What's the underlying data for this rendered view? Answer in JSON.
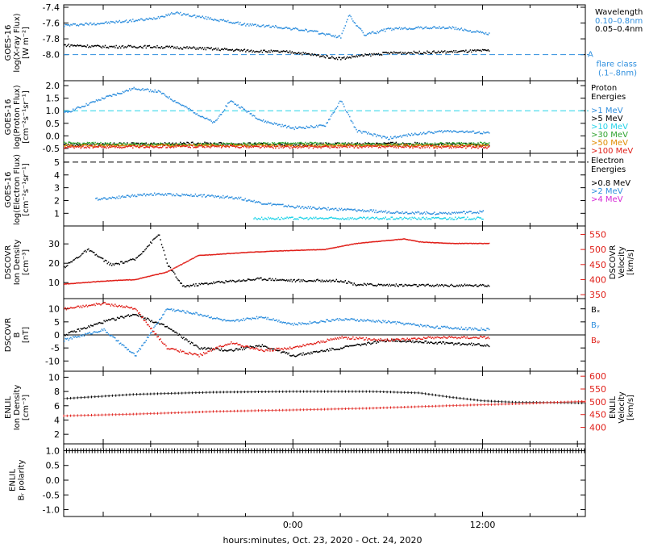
{
  "figure": {
    "xlabel": "hours:minutes, Oct. 23, 2020 - Oct. 24, 2020",
    "x_ticks": [
      {
        "t": 0,
        "label": "0:00"
      },
      {
        "t": 12,
        "label": "12:00"
      }
    ],
    "x_range_hours": [
      -14.5,
      18.5
    ],
    "data_end_hour": 12.4
  },
  "chart_data": [
    {
      "type": "scatter",
      "panel": "xray",
      "ylabel_lines": [
        "GOES-16",
        "log(X-ray Flux)",
        "[W m⁻²]"
      ],
      "ylim": [
        -8.3,
        -7.4
      ],
      "yticks": [
        -7.4,
        -7.6,
        -7.8,
        -8.0
      ],
      "legend_title": "Wavelength",
      "legend": [
        {
          "label": "0.10–0.8nm",
          "color": "#2f8fde"
        },
        {
          "label": "0.05–0.4nm",
          "color": "#000000"
        }
      ],
      "reference_line": {
        "value": -8.0,
        "color": "#2f8fde",
        "tag": "A",
        "label_lines": [
          "flare class",
          "(.1–.8nm)"
        ]
      },
      "series": [
        {
          "color": "#2f8fde",
          "points": [
            [
              -14.5,
              -7.63
            ],
            [
              -12,
              -7.6
            ],
            [
              -9,
              -7.55
            ],
            [
              -7.5,
              -7.47
            ],
            [
              -6,
              -7.52
            ],
            [
              -3,
              -7.62
            ],
            [
              -1,
              -7.65
            ],
            [
              1,
              -7.7
            ],
            [
              3,
              -7.78
            ],
            [
              3.5,
              -7.5
            ],
            [
              4.5,
              -7.75
            ],
            [
              6,
              -7.68
            ],
            [
              8,
              -7.66
            ],
            [
              10,
              -7.66
            ],
            [
              12.4,
              -7.74
            ]
          ]
        },
        {
          "color": "#000000",
          "points": [
            [
              -14.5,
              -7.88
            ],
            [
              -12,
              -7.9
            ],
            [
              -9,
              -7.9
            ],
            [
              -6,
              -7.92
            ],
            [
              -3,
              -7.95
            ],
            [
              0,
              -7.97
            ],
            [
              3,
              -8.05
            ],
            [
              4,
              -8.02
            ],
            [
              6,
              -7.98
            ],
            [
              9,
              -7.97
            ],
            [
              12.4,
              -7.95
            ]
          ]
        }
      ]
    },
    {
      "type": "scatter",
      "panel": "proton",
      "ylabel_lines": [
        "GOES-16",
        "log(Proton Flux)",
        "[cm⁻²s⁻¹sr⁻¹]"
      ],
      "ylim": [
        -0.6,
        2.1
      ],
      "yticks": [
        2.0,
        1.5,
        1.0,
        0.5,
        0.0,
        -0.5
      ],
      "legend_title_lines": [
        "Proton",
        "Energies"
      ],
      "legend": [
        {
          "label": ">1 MeV",
          "color": "#2f8fde"
        },
        {
          "label": ">5 MeV",
          "color": "#000000"
        },
        {
          "label": ">10 MeV",
          "color": "#22d3e8"
        },
        {
          "label": ">30 MeV",
          "color": "#2fa32f"
        },
        {
          "label": ">50 MeV",
          "color": "#e08c00"
        },
        {
          "label": ">100 MeV",
          "color": "#e0201a"
        }
      ],
      "reference_line": {
        "value": 1.0,
        "color": "#22d3e8"
      },
      "series": [
        {
          "color": "#2f8fde",
          "points": [
            [
              -14.5,
              0.9
            ],
            [
              -12,
              1.5
            ],
            [
              -10,
              1.9
            ],
            [
              -8.5,
              1.75
            ],
            [
              -7,
              1.2
            ],
            [
              -5,
              0.5
            ],
            [
              -4,
              1.4
            ],
            [
              -2,
              0.6
            ],
            [
              0,
              0.3
            ],
            [
              2,
              0.4
            ],
            [
              3,
              1.4
            ],
            [
              4,
              0.2
            ],
            [
              6,
              -0.1
            ],
            [
              8,
              0.1
            ],
            [
              10,
              0.2
            ],
            [
              12.4,
              0.1
            ]
          ]
        },
        {
          "color": "#000000",
          "points": [
            [
              -14.5,
              -0.35
            ],
            [
              -6,
              -0.3
            ],
            [
              0,
              -0.35
            ],
            [
              6,
              -0.3
            ],
            [
              12.4,
              -0.35
            ]
          ]
        },
        {
          "color": "#2fa32f",
          "points": [
            [
              -14.5,
              -0.3
            ],
            [
              -6,
              -0.35
            ],
            [
              0,
              -0.3
            ],
            [
              6,
              -0.35
            ],
            [
              12.4,
              -0.3
            ]
          ]
        },
        {
          "color": "#e08c00",
          "points": [
            [
              -14.5,
              -0.4
            ],
            [
              -6,
              -0.38
            ],
            [
              0,
              -0.4
            ],
            [
              6,
              -0.38
            ],
            [
              12.4,
              -0.4
            ]
          ]
        },
        {
          "color": "#e0201a",
          "points": [
            [
              -14.5,
              -0.45
            ],
            [
              -6,
              -0.42
            ],
            [
              0,
              -0.45
            ],
            [
              6,
              -0.43
            ],
            [
              12.4,
              -0.45
            ]
          ]
        }
      ]
    },
    {
      "type": "scatter",
      "panel": "electron",
      "ylabel_lines": [
        "GOES-16",
        "log(Electron Flux)",
        "[cm⁻²s⁻¹sr⁻¹]"
      ],
      "ylim": [
        0.2,
        5.5
      ],
      "yticks": [
        5,
        4,
        3,
        2,
        1
      ],
      "legend_title_lines": [
        "Electron",
        "Energies"
      ],
      "legend": [
        {
          "label": ">0.8 MeV",
          "color": "#000000"
        },
        {
          "label": ">2 MeV",
          "color": "#2f8fde"
        },
        {
          "label": ">4 MeV",
          "color": "#d62ad6"
        }
      ],
      "reference_line": {
        "value": 5.0,
        "color": "#000000"
      },
      "series": [
        {
          "color": "#2f8fde",
          "points": [
            [
              -12.5,
              2.1
            ],
            [
              -9,
              2.5
            ],
            [
              -6,
              2.4
            ],
            [
              -3.5,
              2.2
            ],
            [
              -2,
              1.8
            ],
            [
              0,
              1.5
            ],
            [
              3,
              1.3
            ],
            [
              6,
              1.1
            ],
            [
              9,
              1.0
            ],
            [
              12,
              1.1
            ]
          ]
        },
        {
          "color": "#22d3e8",
          "points": [
            [
              -2.5,
              0.6
            ],
            [
              0,
              0.6
            ],
            [
              4,
              0.6
            ],
            [
              8,
              0.6
            ],
            [
              12,
              0.6
            ]
          ]
        }
      ]
    },
    {
      "type": "scatter",
      "panel": "dscovr-density",
      "ylabel_lines": [
        "DSCOVR",
        "Ion Density",
        "[cm⁻³]"
      ],
      "ylim": [
        3,
        38
      ],
      "yticks": [
        30,
        20,
        10
      ],
      "right_axis": {
        "ylabel_lines": [
          "DSCOVR",
          "Velocity",
          "[km/s]"
        ],
        "color": "#e0201a",
        "ylim": [
          345,
          570
        ],
        "yticks": [
          550,
          500,
          450,
          400,
          350
        ]
      },
      "series": [
        {
          "color": "#000000",
          "axis": "left",
          "points": [
            [
              -14.5,
              18
            ],
            [
              -13,
              27
            ],
            [
              -11.5,
              19
            ],
            [
              -10,
              22
            ],
            [
              -8.5,
              35
            ],
            [
              -8,
              20
            ],
            [
              -7,
              8
            ],
            [
              -5,
              10
            ],
            [
              -2,
              12
            ],
            [
              0,
              11
            ],
            [
              3,
              11
            ],
            [
              4,
              9
            ],
            [
              8,
              8.5
            ],
            [
              12.4,
              8.5
            ]
          ]
        },
        {
          "color": "#e0201a",
          "axis": "right",
          "points": [
            [
              -14.5,
              385
            ],
            [
              -12,
              395
            ],
            [
              -10,
              400
            ],
            [
              -8,
              425
            ],
            [
              -6,
              480
            ],
            [
              -3,
              490
            ],
            [
              -1,
              495
            ],
            [
              2,
              500
            ],
            [
              4,
              520
            ],
            [
              7,
              535
            ],
            [
              8,
              525
            ],
            [
              10,
              520
            ],
            [
              12.4,
              520
            ]
          ]
        }
      ]
    },
    {
      "type": "scatter",
      "panel": "dscovr-b",
      "ylabel_lines": [
        "DSCOVR",
        "B",
        "[nT]"
      ],
      "ylim": [
        -13,
        13
      ],
      "yticks": [
        10,
        5,
        0,
        -5,
        -10
      ],
      "zero_line": true,
      "legend": [
        {
          "label": "Bₓ",
          "color": "#000000"
        },
        {
          "label": "Bᵧ",
          "color": "#2f8fde"
        },
        {
          "label": "Bᵩ",
          "color": "#e0201a"
        }
      ],
      "series": [
        {
          "color": "#000000",
          "points": [
            [
              -14.5,
              0
            ],
            [
              -12,
              5
            ],
            [
              -10,
              8
            ],
            [
              -8,
              3
            ],
            [
              -6,
              -5
            ],
            [
              -4,
              -6
            ],
            [
              -2,
              -4
            ],
            [
              0,
              -8
            ],
            [
              3,
              -5
            ],
            [
              6,
              -2
            ],
            [
              9,
              -3
            ],
            [
              12.4,
              -4
            ]
          ]
        },
        {
          "color": "#2f8fde",
          "points": [
            [
              -14.5,
              -2
            ],
            [
              -12,
              2
            ],
            [
              -10,
              -8
            ],
            [
              -8,
              10
            ],
            [
              -6,
              8
            ],
            [
              -4,
              5
            ],
            [
              -2,
              7
            ],
            [
              0,
              4
            ],
            [
              3,
              6
            ],
            [
              6,
              5
            ],
            [
              9,
              3
            ],
            [
              12.4,
              2
            ]
          ]
        },
        {
          "color": "#e0201a",
          "points": [
            [
              -14.5,
              10
            ],
            [
              -12,
              12
            ],
            [
              -10,
              10
            ],
            [
              -8,
              -5
            ],
            [
              -6,
              -8
            ],
            [
              -4,
              -3
            ],
            [
              -2,
              -6
            ],
            [
              0,
              -5
            ],
            [
              3,
              -1
            ],
            [
              6,
              -2
            ],
            [
              9,
              -1
            ],
            [
              12.4,
              -1
            ]
          ]
        }
      ]
    },
    {
      "type": "line",
      "panel": "enlil-density",
      "ylabel_lines": [
        "ENLIL",
        "Ion Density",
        "[cm⁻³]"
      ],
      "ylim": [
        1,
        10.5
      ],
      "yticks": [
        10,
        8,
        6,
        4,
        2
      ],
      "right_axis": {
        "ylabel_lines": [
          "ENLIL",
          "Velocity",
          "[km/s]"
        ],
        "color": "#e0201a",
        "ylim": [
          345,
          610
        ],
        "yticks": [
          600,
          550,
          500,
          450,
          400
        ]
      },
      "series": [
        {
          "color": "#000000",
          "axis": "left",
          "points": [
            [
              -14.5,
              7.0
            ],
            [
              -10,
              7.6
            ],
            [
              -5,
              7.9
            ],
            [
              0,
              8.0
            ],
            [
              5,
              8.0
            ],
            [
              8,
              7.8
            ],
            [
              10,
              7.2
            ],
            [
              12,
              6.7
            ],
            [
              14,
              6.5
            ],
            [
              18.5,
              6.4
            ]
          ]
        },
        {
          "color": "#e0201a",
          "axis": "right",
          "points": [
            [
              -14.5,
              445
            ],
            [
              -10,
              452
            ],
            [
              -5,
              462
            ],
            [
              0,
              468
            ],
            [
              5,
              475
            ],
            [
              10,
              485
            ],
            [
              14,
              492
            ],
            [
              18.5,
              502
            ]
          ]
        }
      ]
    },
    {
      "type": "line",
      "panel": "enlil-polarity",
      "ylabel_lines": [
        "ENLIL",
        "Bᵣ polarity"
      ],
      "ylim": [
        -1.15,
        1.15
      ],
      "yticks": [
        1.0,
        0.5,
        0.0,
        -0.5,
        -1.0
      ],
      "series": [
        {
          "color": "#000000",
          "axis": "left",
          "points": [
            [
              -14.5,
              1.0
            ],
            [
              18.5,
              1.0
            ]
          ]
        }
      ]
    }
  ]
}
